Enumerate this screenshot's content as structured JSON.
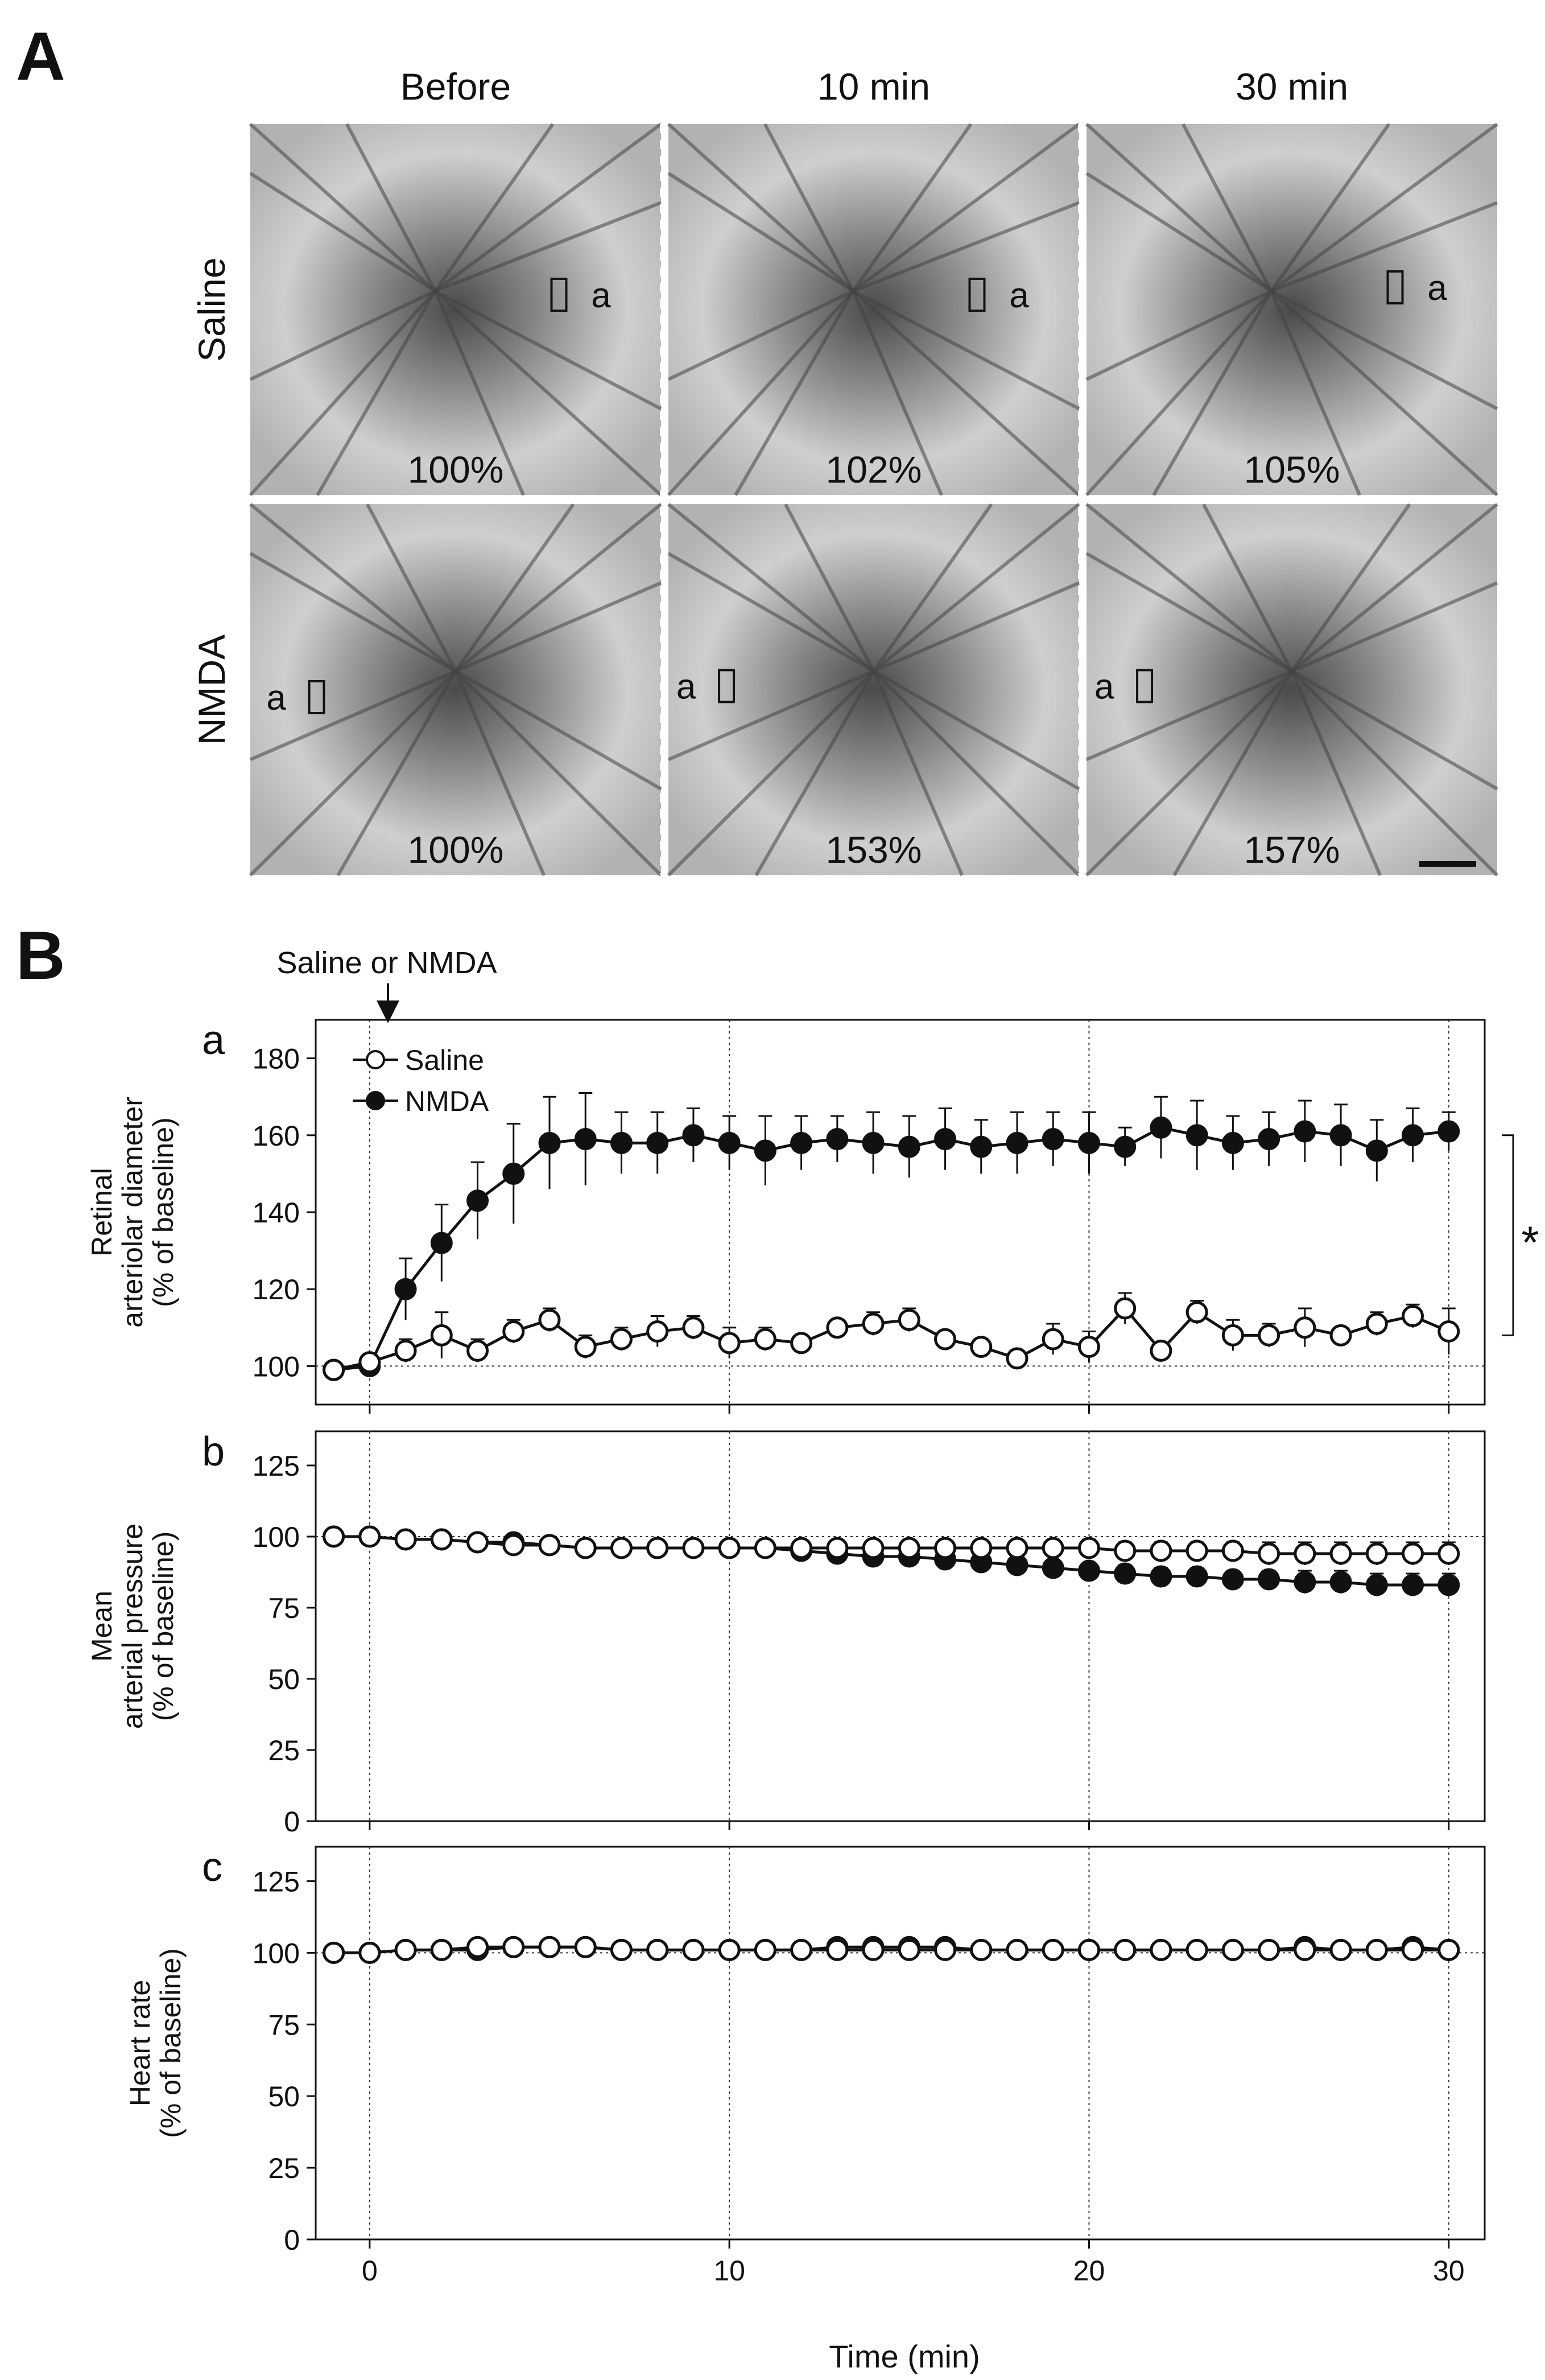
{
  "panel_A": {
    "letter": "A",
    "columns": [
      "Before",
      "10 min",
      "30 min"
    ],
    "rows": [
      "Saline",
      "NMDA"
    ],
    "vessel_label": "a",
    "percentages": [
      [
        "100%",
        "102%",
        "105%"
      ],
      [
        "100%",
        "153%",
        "157%"
      ]
    ],
    "has_scale_bar": true
  },
  "panel_B": {
    "letter": "B",
    "injection_label": "Saline or NMDA",
    "xlabel": "Time (min)",
    "significance": "*"
  },
  "colors": {
    "saline_fill": "#ffffff",
    "nmda_fill": "#111111",
    "line": "#111111",
    "image_bg": "#bdbdbd"
  },
  "chart_data": [
    {
      "type": "line",
      "panel_label": "a",
      "ylabel": [
        "Retinal",
        "arteriolar diameter",
        "(% of baseline)"
      ],
      "xlim": [
        -1.5,
        31
      ],
      "ylim": [
        90,
        190
      ],
      "yticks": [
        100,
        120,
        140,
        160,
        180
      ],
      "xticks": [
        0,
        10,
        20,
        30
      ],
      "x": [
        -1,
        0,
        1,
        2,
        3,
        4,
        5,
        6,
        7,
        8,
        9,
        10,
        11,
        12,
        13,
        14,
        15,
        16,
        17,
        18,
        19,
        20,
        21,
        22,
        23,
        24,
        25,
        26,
        27,
        28,
        29,
        30
      ],
      "series": [
        {
          "name": "Saline",
          "marker": "open",
          "values": [
            99,
            101,
            104,
            108,
            104,
            109,
            112,
            105,
            107,
            109,
            110,
            106,
            107,
            106,
            110,
            111,
            112,
            107,
            105,
            102,
            107,
            105,
            115,
            104,
            114,
            108,
            108,
            110,
            108,
            111,
            113,
            109
          ],
          "errors": [
            1,
            1,
            3,
            6,
            3,
            3,
            3,
            3,
            3,
            4,
            3,
            4,
            3,
            2,
            2,
            3,
            3,
            2,
            2,
            2,
            4,
            4,
            4,
            2,
            3,
            4,
            3,
            5,
            2,
            3,
            3,
            6
          ]
        },
        {
          "name": "NMDA",
          "marker": "filled",
          "values": [
            99,
            100,
            120,
            132,
            143,
            150,
            158,
            159,
            158,
            158,
            160,
            158,
            156,
            158,
            159,
            158,
            157,
            159,
            157,
            158,
            159,
            158,
            157,
            162,
            160,
            158,
            159,
            161,
            160,
            156,
            160,
            161
          ],
          "errors": [
            1,
            1,
            8,
            10,
            10,
            13,
            12,
            12,
            8,
            8,
            7,
            7,
            9,
            7,
            6,
            8,
            8,
            8,
            7,
            8,
            7,
            8,
            5,
            8,
            9,
            7,
            7,
            8,
            8,
            8,
            7,
            5
          ]
        }
      ],
      "legend": [
        "Saline",
        "NMDA"
      ]
    },
    {
      "type": "line",
      "panel_label": "b",
      "ylabel": [
        "Mean",
        "arterial pressure",
        "(% of baseline)"
      ],
      "xlim": [
        -1.5,
        31
      ],
      "ylim": [
        0,
        137
      ],
      "yticks": [
        0,
        25,
        50,
        75,
        100,
        125
      ],
      "xticks": [
        0,
        10,
        20,
        30
      ],
      "x": [
        -1,
        0,
        1,
        2,
        3,
        4,
        5,
        6,
        7,
        8,
        9,
        10,
        11,
        12,
        13,
        14,
        15,
        16,
        17,
        18,
        19,
        20,
        21,
        22,
        23,
        24,
        25,
        26,
        27,
        28,
        29,
        30
      ],
      "series": [
        {
          "name": "Saline",
          "marker": "open",
          "values": [
            100,
            100,
            99,
            99,
            98,
            97,
            97,
            96,
            96,
            96,
            96,
            96,
            96,
            96,
            96,
            96,
            96,
            96,
            96,
            96,
            96,
            96,
            95,
            95,
            95,
            95,
            94,
            94,
            94,
            94,
            94,
            94
          ],
          "errors": [
            1,
            1,
            1,
            1,
            1,
            1,
            1,
            1,
            1,
            1,
            1,
            1,
            1,
            1,
            2,
            2,
            2,
            2,
            2,
            2,
            2,
            3,
            3,
            3,
            3,
            3,
            4,
            4,
            4,
            4,
            4,
            4
          ]
        },
        {
          "name": "NMDA",
          "marker": "filled",
          "values": [
            100,
            100,
            99,
            99,
            98,
            98,
            97,
            96,
            96,
            96,
            96,
            96,
            96,
            95,
            94,
            93,
            93,
            92,
            91,
            90,
            89,
            88,
            87,
            86,
            86,
            85,
            85,
            84,
            84,
            83,
            83,
            83
          ],
          "errors": [
            1,
            1,
            1,
            1,
            1,
            1,
            1,
            1,
            1,
            1,
            1,
            1,
            1,
            1,
            1,
            1,
            1,
            1,
            2,
            2,
            2,
            2,
            3,
            3,
            3,
            3,
            3,
            4,
            4,
            4,
            4,
            4
          ]
        }
      ]
    },
    {
      "type": "line",
      "panel_label": "c",
      "ylabel": [
        "Heart rate",
        "(% of baseline)"
      ],
      "xlim": [
        -1.5,
        31
      ],
      "ylim": [
        0,
        137
      ],
      "yticks": [
        0,
        25,
        50,
        75,
        100,
        125
      ],
      "xticks": [
        0,
        10,
        20,
        30
      ],
      "x": [
        -1,
        0,
        1,
        2,
        3,
        4,
        5,
        6,
        7,
        8,
        9,
        10,
        11,
        12,
        13,
        14,
        15,
        16,
        17,
        18,
        19,
        20,
        21,
        22,
        23,
        24,
        25,
        26,
        27,
        28,
        29,
        30
      ],
      "series": [
        {
          "name": "Saline",
          "marker": "open",
          "values": [
            100,
            100,
            101,
            101,
            102,
            102,
            102,
            102,
            101,
            101,
            101,
            101,
            101,
            101,
            101,
            101,
            101,
            101,
            101,
            101,
            101,
            101,
            101,
            101,
            101,
            101,
            101,
            101,
            101,
            101,
            101,
            101
          ],
          "errors": [
            1,
            1,
            1,
            1,
            1,
            1,
            1,
            1,
            1,
            1,
            1,
            1,
            1,
            1,
            1,
            1,
            1,
            1,
            1,
            1,
            1,
            1,
            1,
            1,
            1,
            1,
            1,
            1,
            1,
            1,
            1,
            1
          ]
        },
        {
          "name": "NMDA",
          "marker": "filled",
          "values": [
            100,
            100,
            101,
            101,
            101,
            102,
            102,
            102,
            101,
            101,
            101,
            101,
            101,
            101,
            102,
            102,
            102,
            102,
            101,
            101,
            101,
            101,
            101,
            101,
            101,
            101,
            101,
            102,
            101,
            101,
            102,
            101
          ],
          "errors": [
            1,
            1,
            1,
            1,
            1,
            1,
            1,
            1,
            1,
            1,
            1,
            1,
            1,
            1,
            1,
            1,
            1,
            1,
            1,
            1,
            1,
            1,
            1,
            1,
            1,
            1,
            1,
            1,
            1,
            1,
            1,
            1
          ]
        }
      ]
    }
  ]
}
